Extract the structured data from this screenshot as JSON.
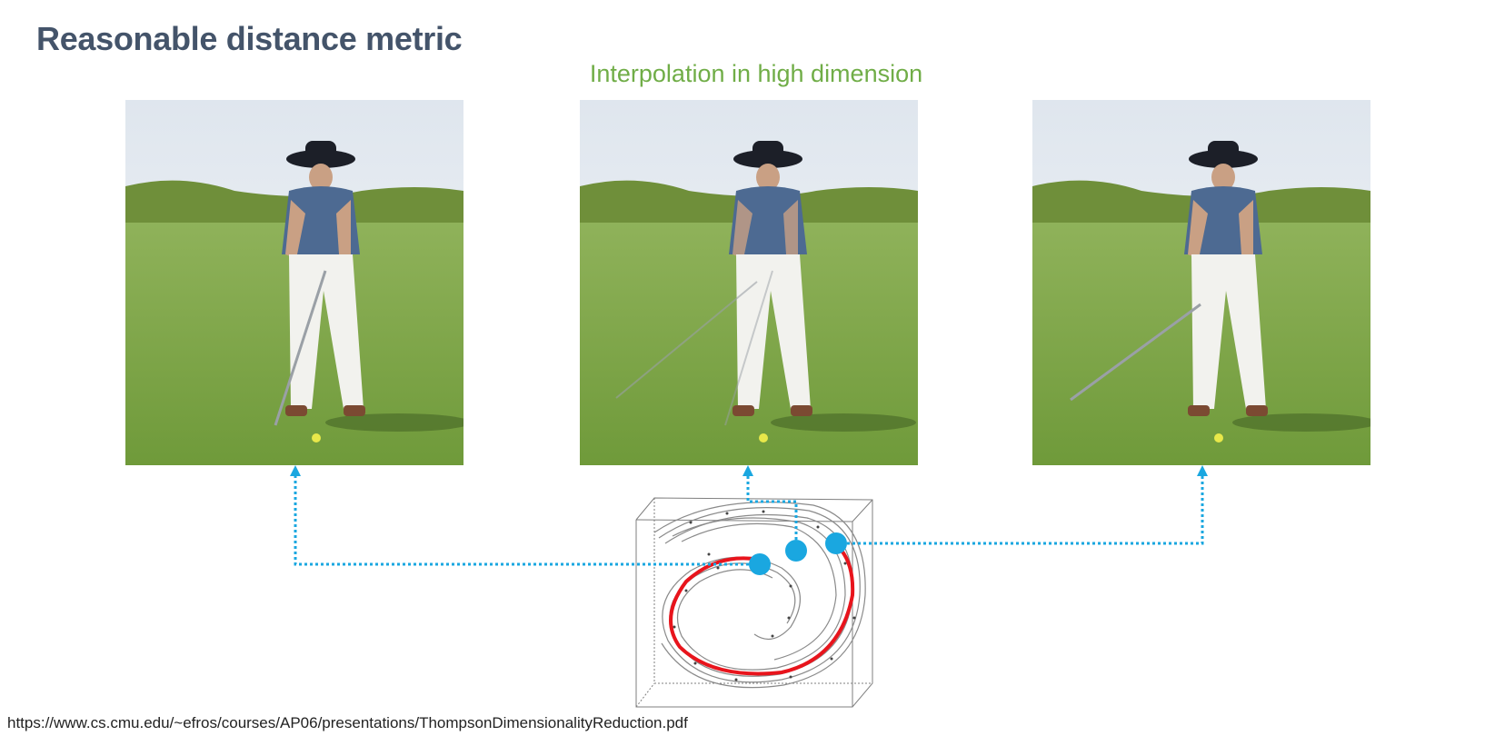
{
  "slide": {
    "title": "Reasonable distance metric",
    "subtitle": "Interpolation in high dimension",
    "source_url": "https://www.cs.cmu.edu/~efros/courses/AP06/presentations/ThompsonDimensionalityReduction.pdf"
  },
  "colors": {
    "title": "#44546a",
    "subtitle": "#70ad47",
    "marker": "#1aa7e0",
    "path": "#e8141c"
  },
  "images": [
    {
      "name": "golfer-left",
      "club_pose": "club down at ball"
    },
    {
      "name": "golfer-middle",
      "club_pose": "blended interpolation"
    },
    {
      "name": "golfer-right",
      "club_pose": "club swung back"
    }
  ]
}
